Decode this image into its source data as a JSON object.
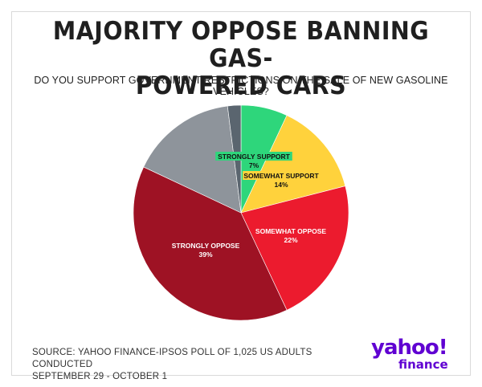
{
  "header": {
    "title_line1": "MAJORITY OPPOSE BANNING GAS-",
    "title_line2": "POWERED CARS",
    "subtitle": "DO YOU SUPPORT GOVERNMENT RESTRICTIONS ON THE SALE OF NEW GASOLINE VEHICLES?"
  },
  "footer": {
    "source_line1": "SOURCE: YAHOO FINANCE-IPSOS POLL OF 1,025 US ADULTS CONDUCTED",
    "source_line2": "SEPTEMBER 29 - OCTOBER 1"
  },
  "logo": {
    "brand": "yahoo!",
    "sub": "finance",
    "color": "#6001d2"
  },
  "chart_data": {
    "type": "pie",
    "title": "MAJORITY OPPOSE BANNING GAS-POWERED CARS",
    "subtitle": "DO YOU SUPPORT GOVERNMENT RESTRICTIONS ON THE SALE OF NEW GASOLINE VEHICLES?",
    "slices": [
      {
        "label": "STRONGLY SUPPORT",
        "value": 7,
        "value_label": "7%",
        "color": "#2ed67b"
      },
      {
        "label": "SOMEWHAT SUPPORT",
        "value": 14,
        "value_label": "14%",
        "color": "#ffd23c"
      },
      {
        "label": "SOMEWHAT OPPOSE",
        "value": 22,
        "value_label": "22%",
        "color": "#ec1b2e"
      },
      {
        "label": "STRONGLY OPPOSE",
        "value": 39,
        "value_label": "39%",
        "color": "#9e1224"
      },
      {
        "label": "",
        "value": 16,
        "value_label": "",
        "color": "#8e949b"
      },
      {
        "label": "",
        "value": 2,
        "value_label": "",
        "color": "#5a656f"
      }
    ]
  }
}
